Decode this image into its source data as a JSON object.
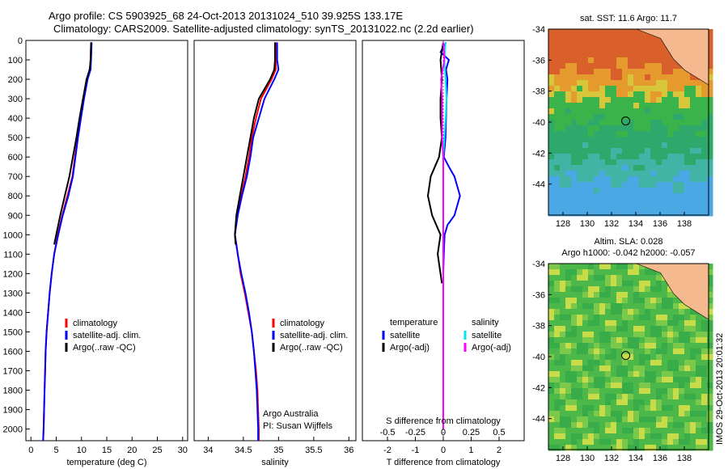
{
  "header": {
    "line1": "Argo profile: CS 5903925_68 24-Oct-2013 20131024_510 39.925S 133.17E",
    "line2": "Climatology: CARS2009. Satellite-adjusted climatology: synTS_20131022.nc (2.2d earlier)"
  },
  "colors": {
    "climatology": "#ff0000",
    "satellite": "#0000ff",
    "argo": "#000000",
    "satellite_s": "#00e5ee",
    "argo_s": "#ff00ff"
  },
  "depth_ticks": [
    "0",
    "100",
    "200",
    "300",
    "400",
    "500",
    "600",
    "700",
    "800",
    "900",
    "1000",
    "1100",
    "1200",
    "1300",
    "1400",
    "1500",
    "1600",
    "1700",
    "1800",
    "1900",
    "2000"
  ],
  "chart_data": [
    {
      "type": "line",
      "id": "temperature",
      "xlabel": "temperature (deg C)",
      "ylabel": "",
      "xlim": [
        -1,
        31
      ],
      "ylim": [
        2060,
        0
      ],
      "xticks": [
        "0",
        "5",
        "10",
        "15",
        "20",
        "25",
        "30"
      ],
      "legend": [
        "climatology",
        "satellite-adj. clim.",
        "Argo(..raw -QC)"
      ],
      "series": [
        {
          "name": "climatology",
          "depth": [
            10,
            100,
            150,
            200,
            300,
            400,
            500,
            600,
            700,
            800,
            900,
            1000,
            1100,
            1200,
            1300,
            1400,
            1500,
            1600,
            1700,
            1800,
            1900,
            2000,
            2060
          ],
          "values": [
            11.9,
            11.8,
            11.7,
            11.0,
            10.4,
            9.8,
            9.2,
            8.7,
            8.2,
            7.2,
            6.2,
            5.3,
            4.6,
            4.1,
            3.7,
            3.4,
            3.1,
            2.9,
            2.8,
            2.7,
            2.6,
            2.5,
            2.4
          ]
        },
        {
          "name": "satellite-adj. clim.",
          "depth": [
            10,
            100,
            150,
            200,
            300,
            400,
            500,
            600,
            700,
            800,
            900,
            1000,
            1100,
            1200,
            1300,
            1400,
            1500,
            1600,
            1700,
            1800,
            1900,
            2000,
            2060
          ],
          "values": [
            12.0,
            11.9,
            11.8,
            11.2,
            10.5,
            9.9,
            9.3,
            8.8,
            8.3,
            7.4,
            6.3,
            5.4,
            4.6,
            4.1,
            3.7,
            3.4,
            3.1,
            2.9,
            2.8,
            2.7,
            2.6,
            2.5,
            2.4
          ]
        },
        {
          "name": "Argo(..raw -QC)",
          "depth": [
            10,
            100,
            150,
            200,
            300,
            400,
            500,
            600,
            700,
            800,
            900,
            1000,
            1050
          ],
          "values": [
            11.9,
            11.8,
            11.6,
            11.0,
            10.3,
            9.6,
            9.0,
            8.3,
            7.6,
            6.7,
            5.8,
            5.0,
            4.6
          ]
        }
      ]
    },
    {
      "type": "line",
      "id": "salinity",
      "xlabel": "salinity",
      "ylabel": "",
      "xlim": [
        33.8,
        36.1
      ],
      "ylim": [
        2060,
        0
      ],
      "xticks": [
        "34",
        "34.5",
        "35",
        "35.5",
        "36"
      ],
      "legend": [
        "climatology",
        "satellite-adj. clim.",
        "Argo(..raw -QC)"
      ],
      "annotation": [
        "Argo Australia",
        "PI: Susan Wijffels"
      ],
      "series": [
        {
          "name": "climatology",
          "depth": [
            10,
            100,
            150,
            200,
            300,
            400,
            500,
            600,
            700,
            800,
            900,
            1000,
            1100,
            1200,
            1300,
            1400,
            1500,
            1600,
            1700,
            1800,
            1900,
            2000,
            2060
          ],
          "values": [
            34.96,
            34.96,
            34.96,
            34.9,
            34.75,
            34.68,
            34.62,
            34.58,
            34.53,
            34.47,
            34.41,
            34.38,
            34.42,
            34.46,
            34.52,
            34.57,
            34.62,
            34.65,
            34.68,
            34.7,
            34.71,
            34.72,
            34.72
          ]
        },
        {
          "name": "satellite-adj. clim.",
          "depth": [
            10,
            100,
            150,
            200,
            300,
            400,
            500,
            600,
            700,
            800,
            900,
            1000,
            1100,
            1200,
            1300,
            1400,
            1500,
            1600,
            1700,
            1800,
            1900,
            2000,
            2060
          ],
          "values": [
            34.98,
            34.98,
            35.0,
            34.94,
            34.8,
            34.72,
            34.64,
            34.6,
            34.55,
            34.48,
            34.42,
            34.38,
            34.42,
            34.47,
            34.53,
            34.58,
            34.62,
            34.65,
            34.67,
            34.69,
            34.7,
            34.71,
            34.71
          ]
        },
        {
          "name": "Argo(..raw -QC)",
          "depth": [
            10,
            100,
            150,
            200,
            300,
            400,
            500,
            600,
            700,
            800,
            900,
            1000,
            1050
          ],
          "values": [
            34.95,
            34.95,
            34.94,
            34.88,
            34.72,
            34.65,
            34.6,
            34.55,
            34.5,
            34.45,
            34.4,
            34.38,
            34.39
          ]
        }
      ]
    },
    {
      "type": "line",
      "id": "difference",
      "xlabel": "T difference from climatology",
      "xlabel_top": "S difference from climatology",
      "xlim": [
        -2.9,
        2.9
      ],
      "ylim": [
        2060,
        0
      ],
      "xticks": [
        "-2",
        "-1",
        "0",
        "1",
        "2"
      ],
      "xticks_top": [
        "-0.5",
        "-0.25",
        "0",
        "0.25",
        "0.5"
      ],
      "legend_title_t": "temperature",
      "legend_title_s": "salinity",
      "legend": [
        "satellite",
        "Argo(-adj)",
        "satellite",
        "Argo(-adj)"
      ],
      "series": [
        {
          "name": "satellite",
          "depth": [
            10,
            60,
            100,
            150,
            200,
            300,
            400,
            500,
            600,
            650,
            700,
            800,
            900,
            950,
            1000,
            1100,
            1200,
            1400,
            1600,
            1800,
            2000
          ],
          "values": [
            0.1,
            -0.1,
            0.2,
            0.1,
            0.15,
            0.12,
            0.1,
            0.08,
            0.02,
            0.2,
            0.4,
            0.6,
            0.4,
            0.15,
            0.05,
            0.02,
            0.0,
            0.0,
            0.0,
            0.0,
            0.0
          ]
        },
        {
          "name": "Argo(-adj)",
          "depth": [
            10,
            100,
            200,
            300,
            400,
            500,
            600,
            700,
            800,
            900,
            1000,
            1050,
            1100,
            1200,
            1250
          ],
          "values": [
            0.0,
            -0.1,
            -0.05,
            -0.1,
            -0.1,
            -0.05,
            -0.15,
            -0.45,
            -0.55,
            -0.4,
            -0.1,
            -0.15,
            -0.2,
            -0.1,
            -0.05
          ]
        },
        {
          "name": "satellite",
          "depth": [
            10,
            100,
            200,
            300,
            400,
            500,
            600,
            800,
            1000,
            1200,
            1400,
            1600,
            1800,
            2000
          ],
          "values": [
            0.02,
            0.01,
            0.02,
            0.03,
            0.02,
            0.01,
            0.0,
            0.0,
            0.0,
            0.0,
            0.0,
            0.0,
            0.0,
            0.0
          ]
        },
        {
          "name": "Argo(-adj)",
          "depth": [
            10,
            100,
            200,
            300,
            400,
            500,
            600,
            800,
            1000,
            1200,
            1400,
            1600,
            1800,
            2000
          ],
          "values": [
            0.0,
            0.01,
            -0.02,
            -0.01,
            -0.01,
            -0.01,
            0.0,
            0.0,
            0.0,
            0.0,
            0.0,
            0.0,
            0.0,
            0.0
          ]
        }
      ]
    },
    {
      "type": "heatmap",
      "id": "sst-map",
      "title": "sat. SST: 11.6 Argo: 11.7",
      "xlim": [
        126.8,
        140
      ],
      "ylim": [
        -46,
        -34
      ],
      "xticks": [
        "128",
        "130",
        "132",
        "134",
        "136",
        "138"
      ],
      "yticks": [
        "-34",
        "-36",
        "-38",
        "-40",
        "-42",
        "-44"
      ],
      "marker": {
        "lon": 133.17,
        "lat": -39.925
      }
    },
    {
      "type": "heatmap",
      "id": "sla-map",
      "title_line1": "Altim. SLA: 0.028",
      "title_line2": "Argo h1000: -0.042 h2000: -0.057",
      "xlim": [
        126.8,
        140
      ],
      "ylim": [
        -46,
        -34
      ],
      "xticks": [
        "128",
        "130",
        "132",
        "134",
        "136",
        "138"
      ],
      "yticks": [
        "-34",
        "-36",
        "-38",
        "-40",
        "-42",
        "-44"
      ],
      "marker": {
        "lon": 133.17,
        "lat": -39.925
      }
    }
  ],
  "side_label": "IMOS 29-Oct-2013 20:01:32"
}
